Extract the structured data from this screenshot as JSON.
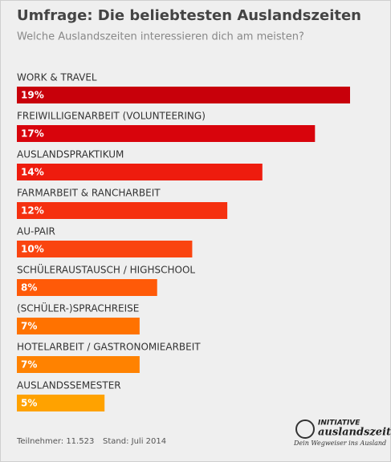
{
  "chart_data": {
    "type": "bar",
    "orientation": "horizontal",
    "title": "Umfrage: Die beliebtesten Auslandszeiten",
    "subtitle": "Welche Auslandszeiten interessieren dich am meisten?",
    "categories": [
      "WORK & TRAVEL",
      "FREIWILLIGENARBEIT (VOLUNTEERING)",
      "AUSLANDSPRAKTIKUM",
      "FARMARBEIT & RANCHARBEIT",
      "AU-PAIR",
      "SCHÜLERAUSTAUSCH / HIGHSCHOOL",
      "(SCHÜLER-)SPRACHREISE",
      "HOTELARBEIT / GASTRONOMIEARBEIT",
      "AUSLANDSSEMESTER"
    ],
    "values": [
      19,
      17,
      14,
      12,
      10,
      8,
      7,
      7,
      5
    ],
    "value_labels": [
      "19%",
      "17%",
      "14%",
      "12%",
      "10%",
      "8%",
      "7%",
      "7%",
      "5%"
    ],
    "colors": [
      "#c8000a",
      "#d8040c",
      "#ee1c0e",
      "#f5300f",
      "#fa4410",
      "#ff5a08",
      "#ff7200",
      "#ff8200",
      "#ffa200"
    ],
    "xlim": [
      0,
      19
    ],
    "notes": [
      "Teilnehmer: 11.523",
      "Stand: Juli 2014"
    ]
  },
  "logo": {
    "line1": "INITIATIVE",
    "line2": "auslandszeit",
    "tagline": "Dein Wegweiser ins Ausland"
  }
}
